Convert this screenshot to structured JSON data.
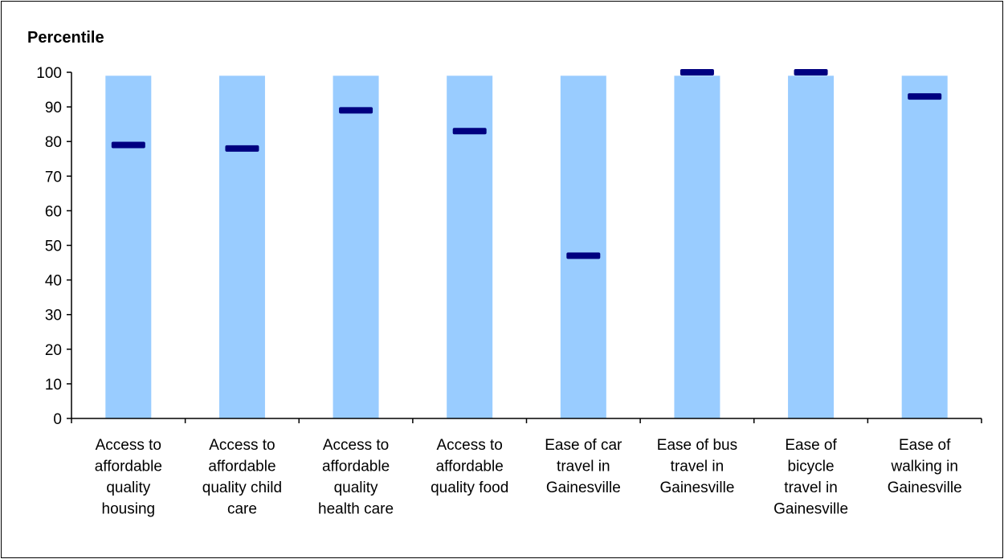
{
  "chart_data": {
    "type": "bar",
    "title": "Percentile",
    "categories": [
      [
        "Access to",
        "affordable",
        "quality",
        "housing"
      ],
      [
        "Access to",
        "affordable",
        "quality child",
        "care"
      ],
      [
        "Access to",
        "affordable",
        "quality",
        "health care"
      ],
      [
        "Access to",
        "affordable",
        "quality food"
      ],
      [
        "Ease of car",
        "travel in",
        "Gainesville"
      ],
      [
        "Ease of bus",
        "travel in",
        "Gainesville"
      ],
      [
        "Ease of",
        "bicycle",
        "travel in",
        "Gainesville"
      ],
      [
        "Ease of",
        "walking in",
        "Gainesville"
      ]
    ],
    "series": [
      {
        "values": [
          99,
          99,
          99,
          99,
          99,
          99,
          99,
          99
        ],
        "color": "#99ccff"
      },
      {
        "values": [
          79,
          78,
          89,
          83,
          47,
          100,
          100,
          93
        ],
        "color": "#000080",
        "marker": "dash"
      }
    ],
    "ylim": [
      0,
      100
    ],
    "yticks": [
      0,
      10,
      20,
      30,
      40,
      50,
      60,
      70,
      80,
      90,
      100
    ],
    "grid": false,
    "legend": "none"
  }
}
